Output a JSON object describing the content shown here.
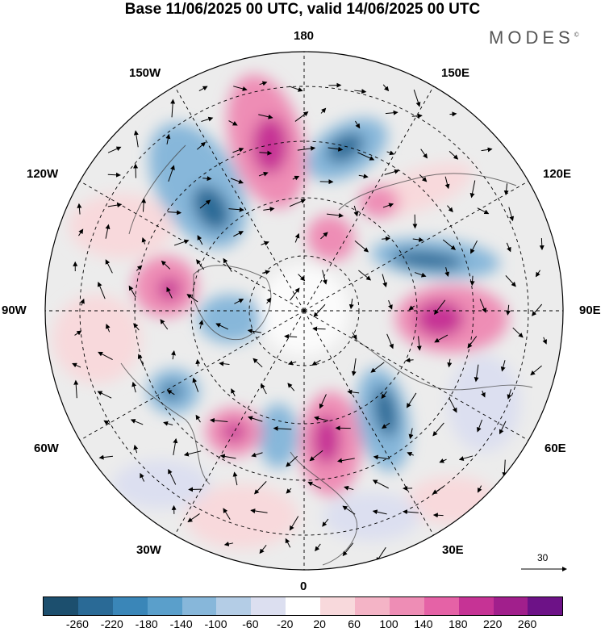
{
  "title": "Base 11/06/2025 00 UTC, valid 14/06/2025 00 UTC",
  "brand": "MODES",
  "brand_mark": "©",
  "map": {
    "projection": "north-polar-stereographic",
    "longitude_labels": {
      "top": "180",
      "bottom": "0",
      "left": "90W",
      "right": "90E",
      "upper_left_1": "150W",
      "upper_left_2": "120W",
      "upper_right_1": "150E",
      "upper_right_2": "120E",
      "lower_left_1": "60W",
      "lower_left_2": "30W",
      "lower_right_1": "60E",
      "lower_right_2": "30E"
    },
    "reference_vector": {
      "label": "30"
    }
  },
  "colorbar": {
    "colors": [
      "#1c4f6e",
      "#2a6a96",
      "#3a86b8",
      "#5a9fcb",
      "#87b7da",
      "#b4cde6",
      "#dcdff0",
      "#ffffff",
      "#f8d9dc",
      "#f4b4c6",
      "#ee8db5",
      "#e562a6",
      "#c63395",
      "#a11f8c",
      "#6d1287"
    ],
    "ticks": [
      "-260",
      "-220",
      "-180",
      "-140",
      "-100",
      "-60",
      "-20",
      "20",
      "60",
      "100",
      "140",
      "180",
      "220",
      "260"
    ]
  },
  "anomaly_colors": {
    "strong_positive": "#c63395",
    "positive": "#ee8db5",
    "weak_positive": "#f8d9dc",
    "strong_negative": "#2a6a96",
    "negative": "#87b7da",
    "weak_negative": "#dcdff0"
  }
}
